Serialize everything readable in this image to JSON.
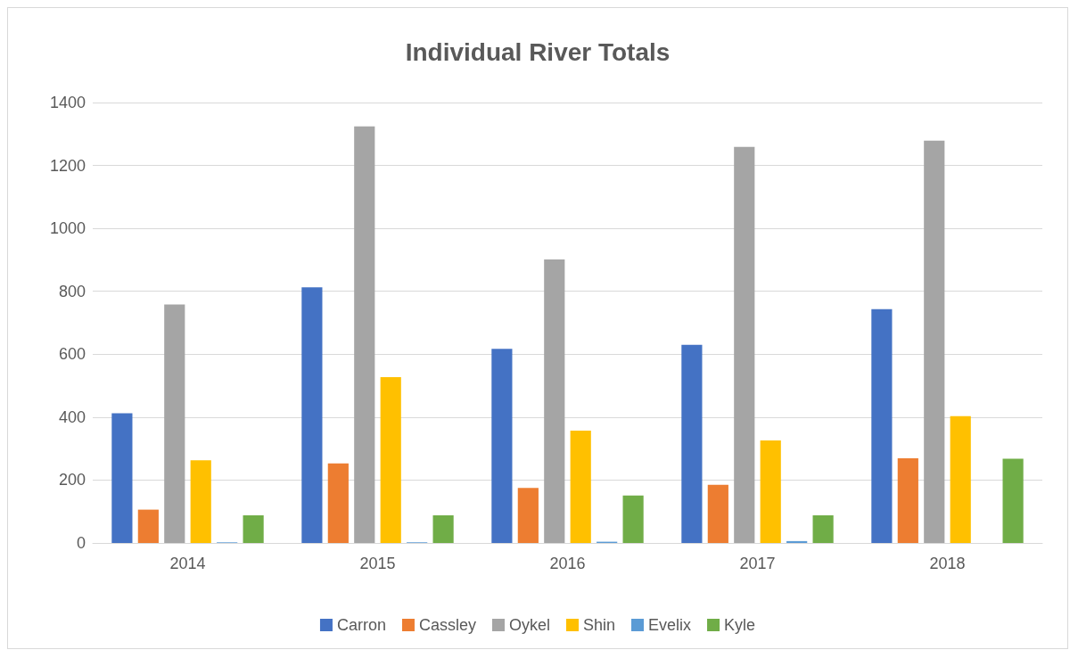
{
  "chart_data": {
    "type": "bar",
    "title": "Individual River Totals",
    "categories": [
      "2014",
      "2015",
      "2016",
      "2017",
      "2018"
    ],
    "series": [
      {
        "name": "Carron",
        "color": "#4472c4",
        "values": [
          412,
          813,
          617,
          630,
          743
        ]
      },
      {
        "name": "Cassley",
        "color": "#ed7d31",
        "values": [
          106,
          253,
          175,
          185,
          269
        ]
      },
      {
        "name": "Oykel",
        "color": "#a5a5a5",
        "values": [
          758,
          1324,
          901,
          1259,
          1279
        ]
      },
      {
        "name": "Shin",
        "color": "#ffc000",
        "values": [
          263,
          527,
          357,
          326,
          403
        ]
      },
      {
        "name": "Evelix",
        "color": "#5b9bd5",
        "values": [
          2,
          2,
          4,
          6,
          0
        ]
      },
      {
        "name": "Kyle",
        "color": "#70ad47",
        "values": [
          88,
          88,
          151,
          88,
          268
        ]
      }
    ],
    "ylim": [
      0,
      1400
    ],
    "yticks": [
      0,
      200,
      400,
      600,
      800,
      1000,
      1200,
      1400
    ],
    "grid": "y",
    "legend": "bottom"
  }
}
